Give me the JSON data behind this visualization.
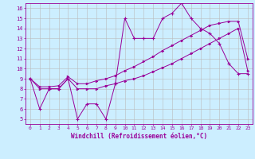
{
  "xlabel": "Windchill (Refroidissement éolien,°C)",
  "background_color": "#cceeff",
  "grid_color": "#bbbbbb",
  "line_color": "#990099",
  "xlim": [
    -0.5,
    23.5
  ],
  "ylim": [
    4.5,
    16.5
  ],
  "xticks": [
    0,
    1,
    2,
    3,
    4,
    5,
    6,
    7,
    8,
    9,
    10,
    11,
    12,
    13,
    14,
    15,
    16,
    17,
    18,
    19,
    20,
    21,
    22,
    23
  ],
  "yticks": [
    5,
    6,
    7,
    8,
    9,
    10,
    11,
    12,
    13,
    14,
    15,
    16
  ],
  "series1_x": [
    0,
    1,
    2,
    3,
    4,
    5,
    6,
    7,
    8,
    9,
    10,
    11,
    12,
    13,
    14,
    15,
    16,
    17,
    18,
    19,
    20,
    21,
    22,
    23
  ],
  "series1_y": [
    9.0,
    6.0,
    8.0,
    8.0,
    9.0,
    5.0,
    6.5,
    6.5,
    5.0,
    8.5,
    15.0,
    13.0,
    13.0,
    13.0,
    15.0,
    15.5,
    16.5,
    15.0,
    14.0,
    13.5,
    12.5,
    10.5,
    9.5,
    9.5
  ],
  "series2_x": [
    0,
    1,
    2,
    3,
    4,
    5,
    6,
    7,
    8,
    9,
    10,
    11,
    12,
    13,
    14,
    15,
    16,
    17,
    18,
    19,
    20,
    21,
    22,
    23
  ],
  "series2_y": [
    9.0,
    8.0,
    8.0,
    8.0,
    9.0,
    8.0,
    8.0,
    8.0,
    8.3,
    8.5,
    8.8,
    9.0,
    9.3,
    9.7,
    10.1,
    10.5,
    11.0,
    11.5,
    12.0,
    12.5,
    13.0,
    13.5,
    14.0,
    9.8
  ],
  "series3_x": [
    0,
    1,
    2,
    3,
    4,
    5,
    6,
    7,
    8,
    9,
    10,
    11,
    12,
    13,
    14,
    15,
    16,
    17,
    18,
    19,
    20,
    21,
    22,
    23
  ],
  "series3_y": [
    9.0,
    8.2,
    8.2,
    8.3,
    9.2,
    8.5,
    8.5,
    8.8,
    9.0,
    9.3,
    9.8,
    10.2,
    10.7,
    11.2,
    11.8,
    12.3,
    12.8,
    13.3,
    13.8,
    14.3,
    14.5,
    14.7,
    14.7,
    11.0
  ]
}
